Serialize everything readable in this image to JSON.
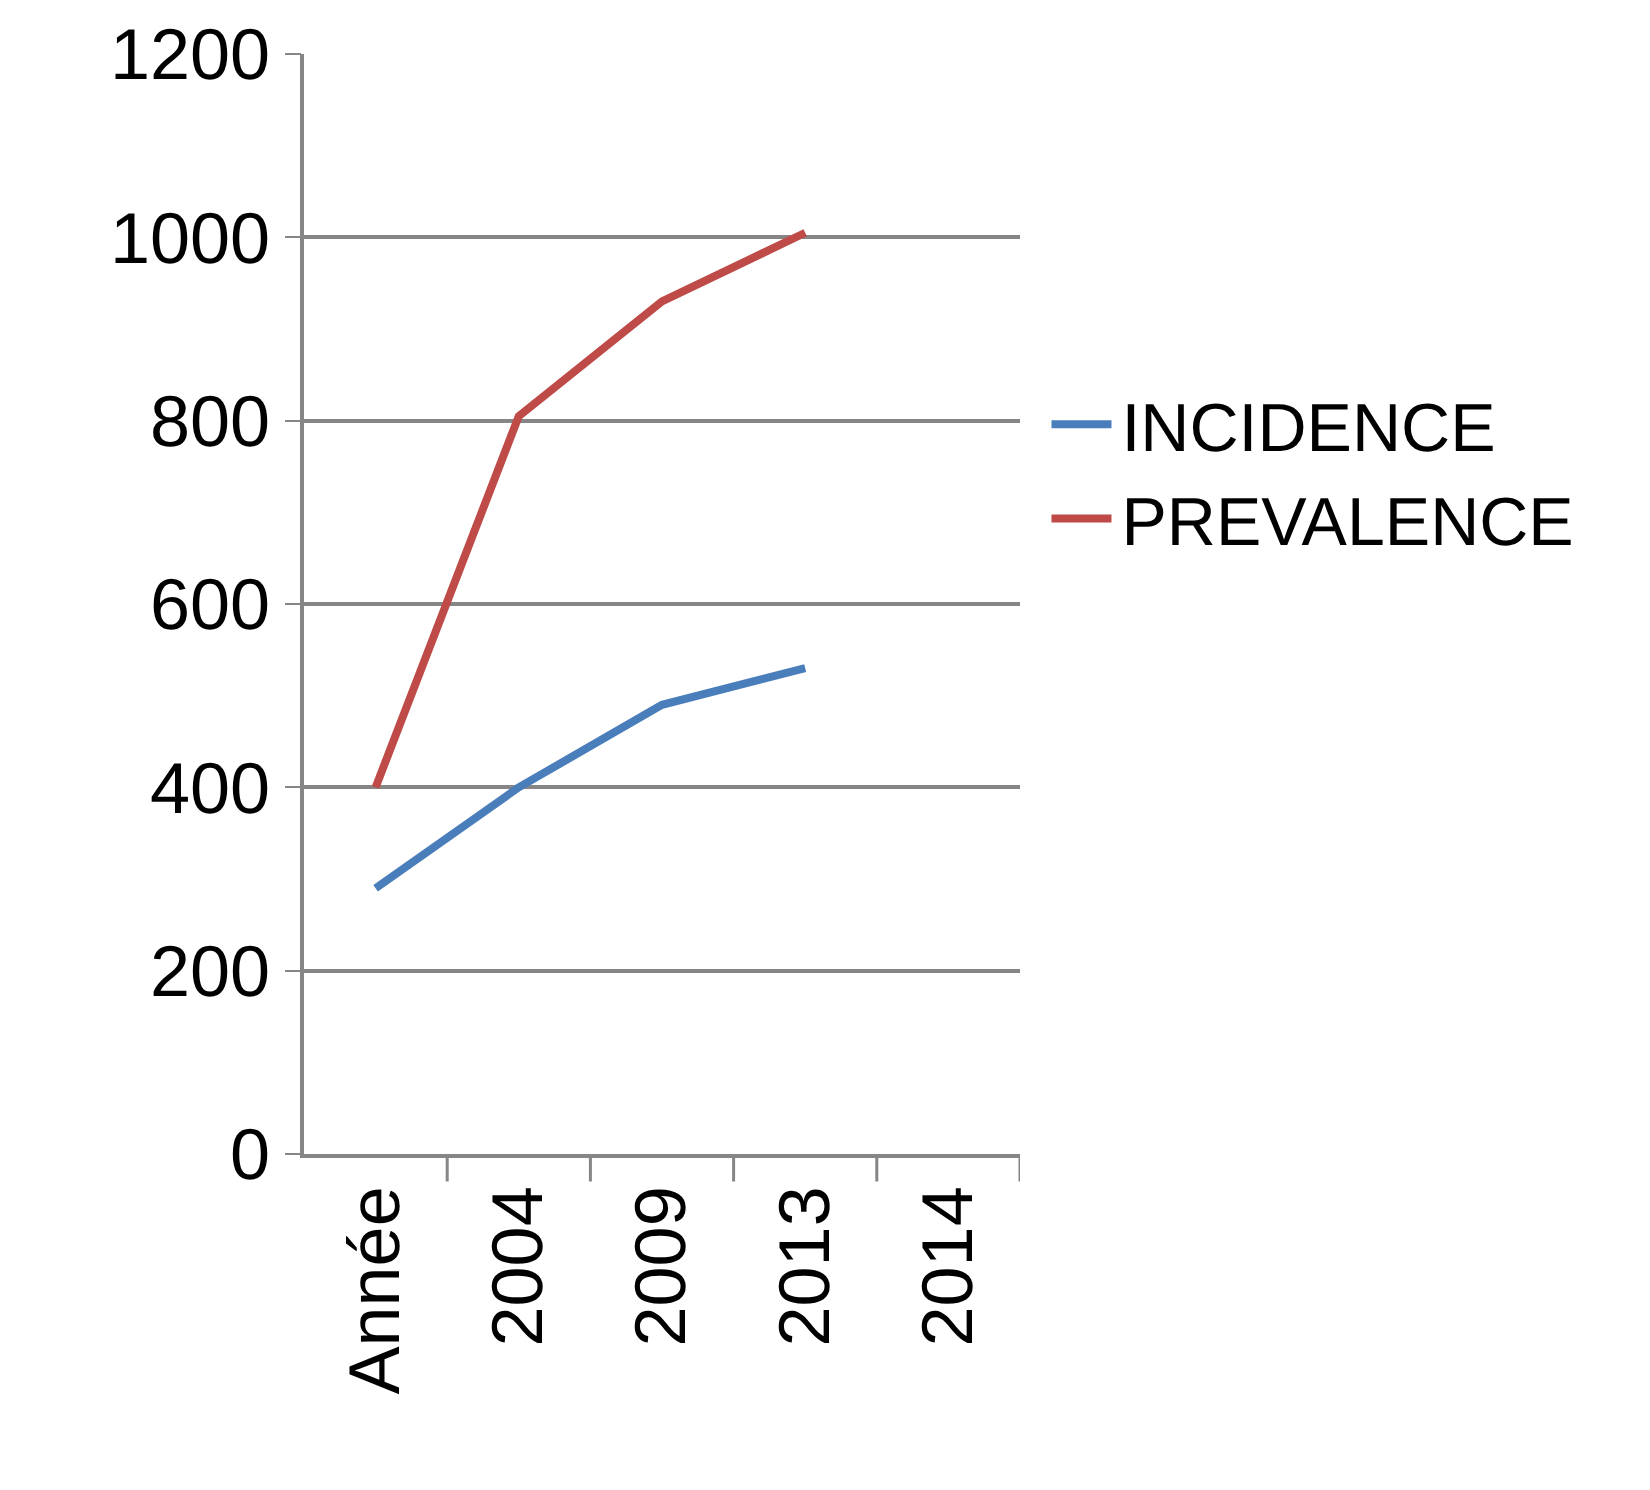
{
  "chart_data": {
    "type": "line",
    "categories": [
      "Année",
      "2004",
      "2009",
      "2013",
      "2014"
    ],
    "series": [
      {
        "name": "INCIDENCE",
        "color": "#4a7ebb",
        "values": [
          290,
          400,
          490,
          530,
          null
        ]
      },
      {
        "name": "PREVALENCE",
        "color": "#be4b48",
        "values": [
          400,
          805,
          930,
          1005,
          null
        ]
      }
    ],
    "ylim": [
      0,
      1200
    ],
    "yticks": [
      0,
      200,
      400,
      600,
      800,
      1000,
      1200
    ],
    "grid": "y",
    "legend": "right",
    "marker": "none",
    "line_style": "solid"
  }
}
